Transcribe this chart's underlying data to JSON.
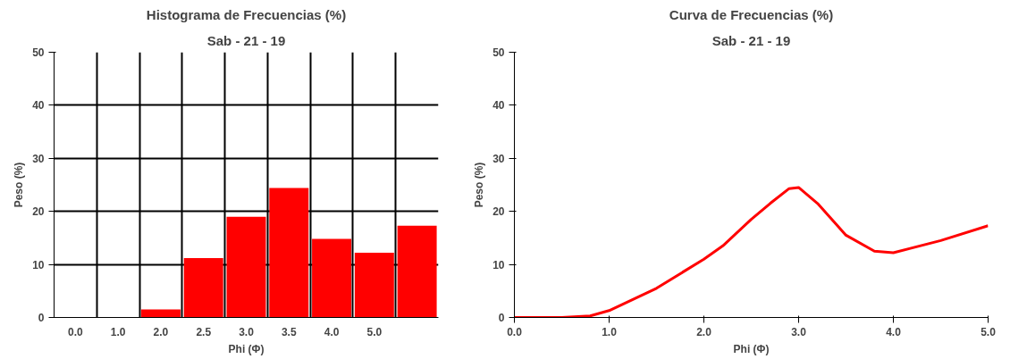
{
  "chart_data": [
    {
      "type": "bar",
      "title": "Histograma de Frecuencias (%)",
      "subtitle": "Sab - 21 - 19",
      "xlabel": "Phi (Φ)",
      "ylabel": "Peso (%)",
      "categories": [
        "0.0",
        "1.0",
        "2.0",
        "2.5",
        "3.0",
        "3.5",
        "4.0",
        "5.0",
        null
      ],
      "values": [
        0,
        0,
        1.5,
        11.2,
        19,
        24.4,
        14.8,
        12.2,
        17.3
      ],
      "color": "#ff0000",
      "ylim": [
        0,
        50
      ],
      "yticks": [
        0,
        10,
        20,
        30,
        40,
        50
      ],
      "grid": true
    },
    {
      "type": "line",
      "title": "Curva de Frecuencias (%)",
      "subtitle": "Sab - 21 - 19",
      "xlabel": "Phi (Φ)",
      "ylabel": "Peso (%)",
      "x": [
        0,
        0.5,
        0.8,
        1.0,
        1.5,
        2.0,
        2.2,
        2.5,
        2.7,
        2.9,
        3.0,
        3.2,
        3.5,
        3.8,
        4.0,
        4.5,
        5.0
      ],
      "values": [
        0,
        0,
        0.3,
        1.3,
        5.5,
        11,
        13.5,
        18.5,
        21.5,
        24.3,
        24.5,
        21.5,
        15.5,
        12.5,
        12.2,
        14.5,
        17.3
      ],
      "color": "#ff0000",
      "xlim": [
        0,
        5
      ],
      "xticks": [
        {
          "value": 0,
          "label": "0.0"
        },
        {
          "value": 1,
          "label": "1.0"
        },
        {
          "value": 2,
          "label": "2.0"
        },
        {
          "value": 3,
          "label": "3.0"
        },
        {
          "value": 4,
          "label": "4.0"
        },
        {
          "value": 5,
          "label": "5.0"
        }
      ],
      "ylim": [
        0,
        50
      ],
      "yticks": [
        0,
        10,
        20,
        30,
        40,
        50
      ],
      "grid": false,
      "marker": "none",
      "line_style": "solid"
    }
  ]
}
